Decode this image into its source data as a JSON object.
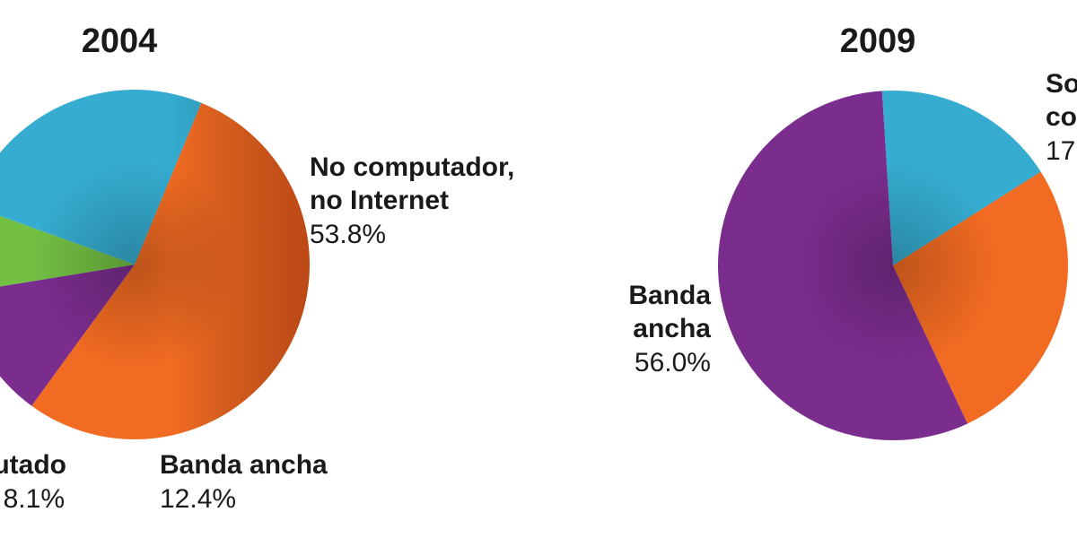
{
  "colors": {
    "orange": "#f26b22",
    "purple": "#7b2d8e",
    "blue": "#35acd0",
    "green": "#73c043"
  },
  "chart_data": [
    {
      "type": "pie",
      "title": "2004",
      "slices": [
        {
          "name": "No computador, no Internet",
          "value": 53.8,
          "color": "orange",
          "lines": [
            "No computador,",
            "no Internet"
          ],
          "pct": "53.8%"
        },
        {
          "name": "Banda ancha",
          "value": 12.4,
          "color": "purple",
          "lines": [
            "Banda ancha"
          ],
          "pct": "12.4%"
        },
        {
          "name": "utado",
          "value": 8.1,
          "color": "green",
          "lines": [
            "utado"
          ],
          "pct": "8.1%"
        },
        {
          "name": "",
          "value": 25.7,
          "color": "blue",
          "lines": [],
          "pct": ""
        }
      ]
    },
    {
      "type": "pie",
      "title": "2009",
      "slices": [
        {
          "name": "So co",
          "value": 17.0,
          "color": "blue",
          "lines": [
            "So",
            "co"
          ],
          "pct": "17"
        },
        {
          "name": "",
          "value": 27.0,
          "color": "orange",
          "lines": [],
          "pct": ""
        },
        {
          "name": "Banda ancha",
          "value": 56.0,
          "color": "purple",
          "lines": [
            "Banda",
            "ancha"
          ],
          "pct": "56.0%"
        }
      ]
    }
  ]
}
